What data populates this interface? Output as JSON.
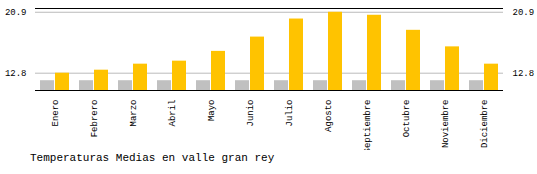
{
  "chart_data": {
    "type": "bar",
    "title": "Temperaturas Medias en valle gran rey",
    "categories": [
      "Enero",
      "Febrero",
      "Marzo",
      "Abril",
      "Mayo",
      "Junio",
      "Julio",
      "Agosto",
      "Septiembre",
      "Octubre",
      "Noviembre",
      "Diciembre"
    ],
    "series": [
      {
        "color": "#C0C0C0",
        "values": [
          11.8,
          11.8,
          11.8,
          11.8,
          11.8,
          11.8,
          11.8,
          11.8,
          11.8,
          11.8,
          11.8,
          11.8
        ]
      },
      {
        "color": "#FFC300",
        "values": [
          12.8,
          13.2,
          14.0,
          14.4,
          15.7,
          17.6,
          20.0,
          20.9,
          20.5,
          18.5,
          16.3,
          14.0
        ]
      }
    ],
    "ylim": [
      10.5,
      21.4
    ],
    "yticks": [
      12.8,
      20.9
    ],
    "grid": true
  }
}
